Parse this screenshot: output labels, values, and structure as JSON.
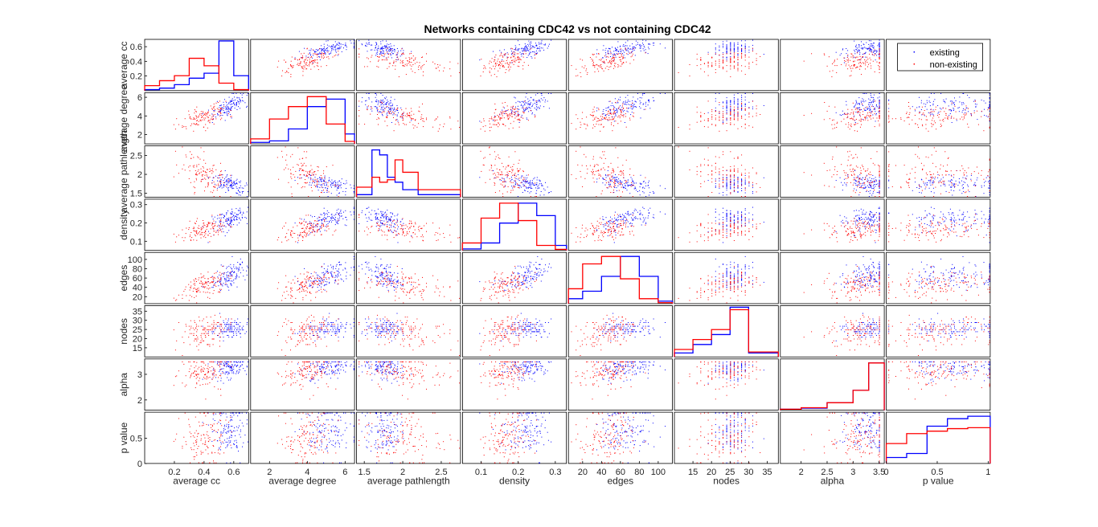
{
  "chart_data": {
    "type": "scatter",
    "title": "Networks containing CDC42  vs not containing CDC42",
    "variables": [
      "average cc",
      "average degree",
      "average pathlength",
      "density",
      "edges",
      "nodes",
      "alpha",
      "p value"
    ],
    "ylabels": [
      "average cc",
      "average degree",
      "average pathlength",
      "density",
      "edges",
      "nodes",
      "alpha",
      "p value"
    ],
    "ranges": [
      [
        0,
        0.7
      ],
      [
        1,
        6.5
      ],
      [
        1.4,
        2.75
      ],
      [
        0.05,
        0.33
      ],
      [
        5,
        115
      ],
      [
        10,
        38
      ],
      [
        1.6,
        3.6
      ],
      [
        0,
        1.02
      ]
    ],
    "ticks": [
      [
        0.2,
        0.4,
        0.6
      ],
      [
        2,
        4,
        6
      ],
      [
        1.5,
        2,
        2.5
      ],
      [
        0.1,
        0.2,
        0.3
      ],
      [
        20,
        40,
        60,
        80,
        100
      ],
      [
        15,
        20,
        25,
        30,
        35
      ],
      [
        2,
        2.5,
        3,
        3.5
      ],
      [
        0,
        0.5,
        1
      ]
    ],
    "yticks": [
      [
        0.2,
        0.4,
        0.6
      ],
      [
        2,
        4,
        6
      ],
      [
        1.5,
        2,
        2.5
      ],
      [
        0.1,
        0.2,
        0.3
      ],
      [
        20,
        40,
        60,
        80,
        100
      ],
      [
        15,
        20,
        25,
        30,
        35
      ],
      [
        2,
        3
      ],
      [
        0,
        0.5
      ]
    ],
    "series": [
      {
        "name": "existing",
        "color": "#0000ff",
        "mean": [
          0.56,
          5.0,
          1.78,
          0.215,
          62,
          25.5,
          3.3,
          0.65
        ],
        "sd": [
          0.06,
          0.75,
          0.12,
          0.035,
          15,
          2.8,
          0.25,
          0.26
        ],
        "hist_bin_edges": [
          [
            0.0,
            0.1,
            0.2,
            0.3,
            0.4,
            0.5,
            0.6,
            0.7
          ],
          [
            1,
            2,
            3,
            4,
            5,
            6,
            6.5
          ],
          [
            1.4,
            1.6,
            1.7,
            1.8,
            1.9,
            2.0,
            2.2,
            2.75
          ],
          [
            0.05,
            0.1,
            0.15,
            0.2,
            0.25,
            0.3,
            0.33
          ],
          [
            5,
            20,
            40,
            60,
            80,
            100,
            115
          ],
          [
            10,
            15,
            20,
            25,
            30,
            38
          ],
          [
            1.6,
            2.0,
            2.5,
            3.0,
            3.3,
            3.6
          ],
          [
            0,
            0.2,
            0.4,
            0.6,
            0.8,
            1.02
          ]
        ],
        "hist_heights": [
          [
            0.02,
            0.05,
            0.12,
            0.25,
            0.35,
            1.0,
            0.3
          ],
          [
            0.03,
            0.06,
            0.3,
            0.75,
            0.9,
            0.2
          ],
          [
            0.05,
            0.95,
            0.85,
            0.4,
            0.3,
            0.15,
            0.05
          ],
          [
            0.03,
            0.15,
            0.55,
            0.95,
            0.7,
            0.1
          ],
          [
            0.1,
            0.25,
            0.55,
            0.95,
            0.55,
            0.05
          ],
          [
            0.08,
            0.25,
            0.45,
            1.0,
            0.08
          ],
          [
            0.02,
            0.04,
            0.15,
            0.4,
            0.95
          ],
          [
            0.12,
            0.2,
            0.75,
            0.9,
            0.95
          ]
        ]
      },
      {
        "name": "non-existing",
        "color": "#ff0000",
        "mean": [
          0.4,
          3.9,
          2.05,
          0.165,
          45,
          23.5,
          3.15,
          0.5
        ],
        "sd": [
          0.09,
          0.85,
          0.28,
          0.035,
          16,
          4.2,
          0.35,
          0.28
        ],
        "hist_bin_edges": [
          [
            0.0,
            0.1,
            0.2,
            0.3,
            0.4,
            0.5,
            0.6,
            0.7
          ],
          [
            1,
            2,
            3,
            4,
            5,
            6,
            6.5
          ],
          [
            1.4,
            1.6,
            1.7,
            1.8,
            1.9,
            2.0,
            2.2,
            2.75
          ],
          [
            0.05,
            0.1,
            0.15,
            0.2,
            0.25,
            0.3,
            0.33
          ],
          [
            5,
            20,
            40,
            60,
            80,
            100,
            115
          ],
          [
            10,
            15,
            20,
            25,
            30,
            38
          ],
          [
            1.6,
            2.0,
            2.5,
            3.0,
            3.3,
            3.6
          ],
          [
            0,
            0.2,
            0.4,
            0.6,
            0.8,
            1.02
          ]
        ],
        "hist_heights": [
          [
            0.1,
            0.2,
            0.3,
            0.65,
            0.5,
            0.15,
            0.02
          ],
          [
            0.1,
            0.5,
            0.75,
            0.95,
            0.4,
            0.05
          ],
          [
            0.2,
            0.4,
            0.3,
            0.35,
            0.75,
            0.5,
            0.15
          ],
          [
            0.15,
            0.65,
            0.95,
            0.6,
            0.1,
            0.02
          ],
          [
            0.3,
            0.8,
            0.95,
            0.5,
            0.1,
            0.02
          ],
          [
            0.15,
            0.35,
            0.55,
            0.95,
            0.1
          ],
          [
            0.02,
            0.05,
            0.15,
            0.4,
            0.95
          ],
          [
            0.4,
            0.6,
            0.65,
            0.7,
            0.72
          ]
        ]
      }
    ],
    "points_per_series": 130,
    "legend": "top-right",
    "grid": false
  }
}
